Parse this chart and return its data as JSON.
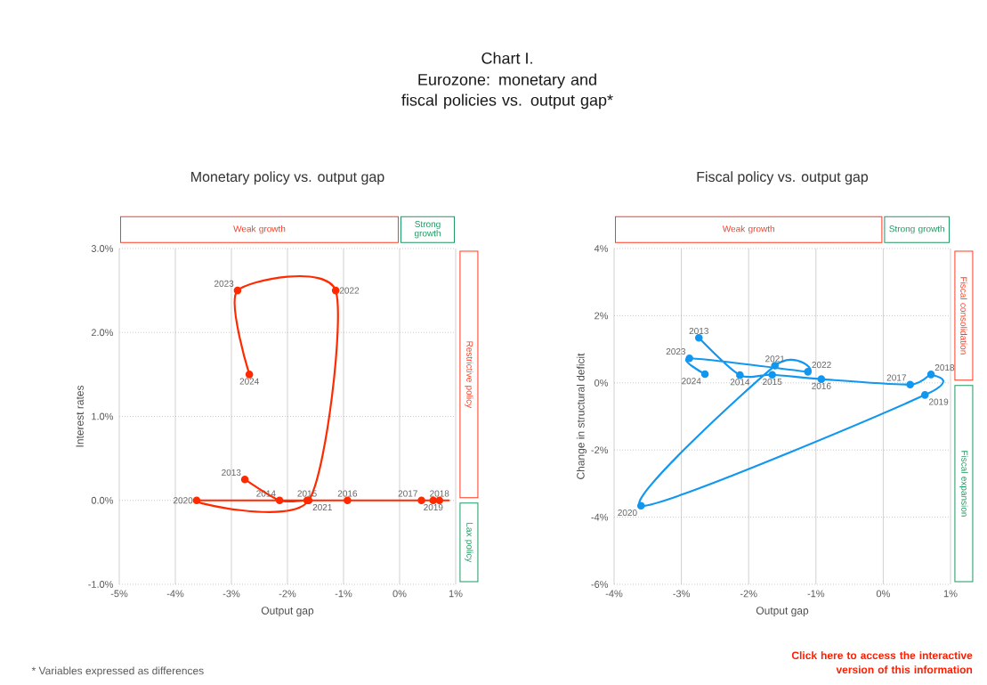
{
  "chart_data": [
    {
      "type": "line",
      "title": "Monetary policy vs. output gap",
      "xlabel": "Output gap",
      "ylabel": "Interest rates",
      "x": [
        -2.76,
        -2.14,
        -1.65,
        -0.93,
        0.39,
        0.71,
        0.6,
        -3.62,
        -1.62,
        -1.14,
        -2.89,
        -2.68
      ],
      "values": [
        0.25,
        0,
        0,
        0,
        0,
        0,
        0,
        0,
        0,
        2.5,
        2.5,
        1.5
      ],
      "color": "#ff2a00",
      "marker": "circle",
      "line_style": "solid",
      "grid": true,
      "xlim": [
        -5,
        1
      ],
      "ylim": [
        -1,
        3
      ],
      "xticks": [
        {
          "value": -5,
          "label": "-5%"
        },
        {
          "value": -4,
          "label": "-4%"
        },
        {
          "value": -3,
          "label": "-3%"
        },
        {
          "value": -2,
          "label": "-2%"
        },
        {
          "value": -1,
          "label": "-1%"
        },
        {
          "value": 0,
          "label": "0%"
        },
        {
          "value": 1,
          "label": "1%"
        }
      ],
      "yticks": [
        {
          "value": -1,
          "label": "-1.0%"
        },
        {
          "value": 0,
          "label": "0.0%"
        },
        {
          "value": 1,
          "label": "1.0%"
        },
        {
          "value": 2,
          "label": "2.0%"
        },
        {
          "value": 3,
          "label": "3.0%"
        }
      ],
      "annotations": [
        {
          "text": "2013",
          "x": -2.76,
          "y": 0.25
        },
        {
          "text": "2014",
          "x": -2.14,
          "y": 0
        },
        {
          "text": "2015",
          "x": -1.65,
          "y": 0
        },
        {
          "text": "2016",
          "x": -0.93,
          "y": 0
        },
        {
          "text": "2017",
          "x": 0.39,
          "y": 0
        },
        {
          "text": "2018",
          "x": 0.71,
          "y": 0
        },
        {
          "text": "2019",
          "x": 0.6,
          "y": 0
        },
        {
          "text": "2020",
          "x": -3.62,
          "y": 0
        },
        {
          "text": "2021",
          "x": -1.62,
          "y": 0
        },
        {
          "text": "2022",
          "x": -1.14,
          "y": 2.5
        },
        {
          "text": "2023",
          "x": -2.89,
          "y": 2.5
        },
        {
          "text": "2024",
          "x": -2.68,
          "y": 1.5
        },
        "Weak growth",
        "Strong growth",
        "Restrictive policy",
        "Lax policy",
        "Chart I.",
        "Eurozone: monetary and fiscal policies vs. output gap*",
        "* Variables expressed as differences"
      ]
    },
    {
      "type": "line",
      "title": "Fiscal policy vs. output gap",
      "xlabel": "Output gap",
      "ylabel": "Change in structural deficit",
      "x": [
        -2.74,
        -2.13,
        -1.65,
        -0.92,
        0.4,
        0.71,
        0.62,
        -3.6,
        -1.61,
        -1.12,
        -2.88,
        -2.65
      ],
      "values": [
        1.34,
        0.23,
        0.24,
        0.11,
        -0.05,
        0.25,
        -0.36,
        -3.66,
        0.51,
        0.33,
        0.73,
        0.26
      ],
      "color": "#1197f0",
      "marker": "circle",
      "line_style": "solid",
      "grid": true,
      "xlim": [
        -4,
        1
      ],
      "ylim": [
        -6,
        4
      ],
      "xticks": [
        {
          "value": -4,
          "label": "-4%"
        },
        {
          "value": -3,
          "label": "-3%"
        },
        {
          "value": -2,
          "label": "-2%"
        },
        {
          "value": -1,
          "label": "-1%"
        },
        {
          "value": 0,
          "label": "0%"
        },
        {
          "value": 1,
          "label": "1%"
        }
      ],
      "yticks": [
        {
          "value": -6,
          "label": "-6%"
        },
        {
          "value": -4,
          "label": "-4%"
        },
        {
          "value": -2,
          "label": "-2%"
        },
        {
          "value": 0,
          "label": "0%"
        },
        {
          "value": 2,
          "label": "2%"
        },
        {
          "value": 4,
          "label": "4%"
        }
      ],
      "annotations": [
        {
          "text": "2013",
          "x": -2.74,
          "y": 1.34
        },
        {
          "text": "2014",
          "x": -2.13,
          "y": 0.23
        },
        {
          "text": "2015",
          "x": -1.65,
          "y": 0.24
        },
        {
          "text": "2016",
          "x": -0.92,
          "y": 0.11
        },
        {
          "text": "2017",
          "x": 0.4,
          "y": -0.05
        },
        {
          "text": "2018",
          "x": 0.71,
          "y": 0.25
        },
        {
          "text": "2019",
          "x": 0.62,
          "y": -0.36
        },
        {
          "text": "2020",
          "x": -3.6,
          "y": -3.66
        },
        {
          "text": "2021",
          "x": -1.61,
          "y": 0.51
        },
        {
          "text": "2022",
          "x": -1.12,
          "y": 0.33
        },
        {
          "text": "2023",
          "x": -2.88,
          "y": 0.73
        },
        {
          "text": "2024",
          "x": -2.65,
          "y": 0.26
        },
        "Weak growth",
        "Strong growth",
        "Fiscal consolidation",
        "Fiscal expansion",
        "Click here to access the interactive version of this information"
      ]
    }
  ]
}
